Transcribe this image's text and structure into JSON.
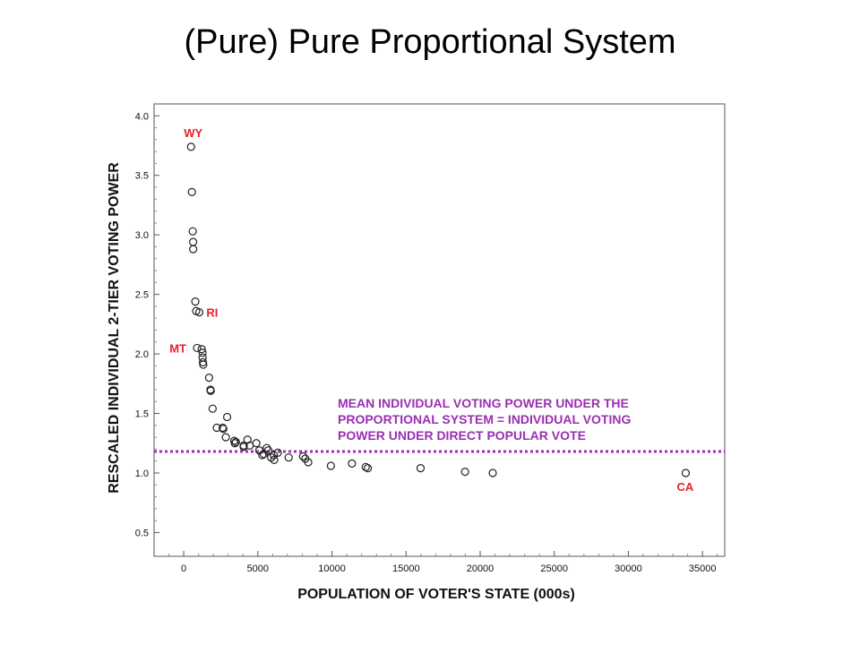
{
  "page": {
    "title": "(Pure) Pure Proportional System"
  },
  "colors": {
    "label_red": "#e8202a",
    "mean_purple": "#9a2fb0",
    "point": "#222222"
  },
  "chart_data": {
    "type": "scatter",
    "xlabel": "POPULATION OF VOTER'S STATE  (000s)",
    "ylabel": "RESCALED INDIVIDUAL 2-TIER VOTING POWER",
    "xlim": [
      -2000,
      36500
    ],
    "ylim": [
      0.3,
      4.1
    ],
    "xticks": [
      "0",
      "5000",
      "10000",
      "15000",
      "20000",
      "25000",
      "30000",
      "35000"
    ],
    "xtick_values": [
      0,
      5000,
      10000,
      15000,
      20000,
      25000,
      30000,
      35000
    ],
    "yticks": [
      "0.5",
      "1.0",
      "1.5",
      "2.0",
      "2.5",
      "3.0",
      "3.5",
      "4.0"
    ],
    "ytick_values": [
      0.5,
      1.0,
      1.5,
      2.0,
      2.5,
      3.0,
      3.5,
      4.0
    ],
    "grid": false,
    "points": [
      {
        "x": 494,
        "y": 3.74
      },
      {
        "x": 550,
        "y": 3.36
      },
      {
        "x": 608,
        "y": 3.03
      },
      {
        "x": 635,
        "y": 2.94
      },
      {
        "x": 640,
        "y": 2.88
      },
      {
        "x": 784,
        "y": 2.44
      },
      {
        "x": 840,
        "y": 2.36
      },
      {
        "x": 1048,
        "y": 2.35
      },
      {
        "x": 902,
        "y": 2.05
      },
      {
        "x": 1210,
        "y": 2.04
      },
      {
        "x": 1270,
        "y": 2.01
      },
      {
        "x": 1275,
        "y": 1.97
      },
      {
        "x": 1295,
        "y": 1.93
      },
      {
        "x": 1320,
        "y": 1.91
      },
      {
        "x": 1710,
        "y": 1.8
      },
      {
        "x": 1800,
        "y": 1.7
      },
      {
        "x": 1820,
        "y": 1.69
      },
      {
        "x": 1950,
        "y": 1.54
      },
      {
        "x": 2230,
        "y": 1.38
      },
      {
        "x": 2630,
        "y": 1.38
      },
      {
        "x": 2670,
        "y": 1.37
      },
      {
        "x": 2840,
        "y": 1.3
      },
      {
        "x": 2930,
        "y": 1.47
      },
      {
        "x": 3410,
        "y": 1.27
      },
      {
        "x": 3450,
        "y": 1.25
      },
      {
        "x": 3520,
        "y": 1.26
      },
      {
        "x": 4040,
        "y": 1.22
      },
      {
        "x": 4050,
        "y": 1.23
      },
      {
        "x": 4300,
        "y": 1.28
      },
      {
        "x": 4450,
        "y": 1.23
      },
      {
        "x": 4900,
        "y": 1.25
      },
      {
        "x": 5100,
        "y": 1.19
      },
      {
        "x": 5300,
        "y": 1.15
      },
      {
        "x": 5400,
        "y": 1.16
      },
      {
        "x": 5600,
        "y": 1.21
      },
      {
        "x": 5700,
        "y": 1.19
      },
      {
        "x": 5900,
        "y": 1.13
      },
      {
        "x": 6080,
        "y": 1.15
      },
      {
        "x": 6100,
        "y": 1.11
      },
      {
        "x": 6350,
        "y": 1.17
      },
      {
        "x": 7080,
        "y": 1.13
      },
      {
        "x": 8050,
        "y": 1.14
      },
      {
        "x": 8200,
        "y": 1.12
      },
      {
        "x": 8400,
        "y": 1.09
      },
      {
        "x": 9930,
        "y": 1.06
      },
      {
        "x": 11350,
        "y": 1.08
      },
      {
        "x": 12280,
        "y": 1.05
      },
      {
        "x": 12420,
        "y": 1.04
      },
      {
        "x": 15980,
        "y": 1.04
      },
      {
        "x": 18980,
        "y": 1.01
      },
      {
        "x": 20850,
        "y": 1.0
      },
      {
        "x": 33870,
        "y": 1.0
      }
    ],
    "mean_line": {
      "y": 1.18,
      "label_lines": [
        "MEAN INDIVIDUAL VOTING POWER UNDER THE",
        "PROPORTIONAL SYSTEM = INDIVIDUAL VOTING",
        "POWER UNDER DIRECT POPULAR VOTE"
      ]
    },
    "annotations": [
      {
        "text": "WY",
        "x": 494,
        "y": 3.74
      },
      {
        "text": "RI",
        "x": 1048,
        "y": 2.35
      },
      {
        "text": "MT",
        "x": 902,
        "y": 2.05
      },
      {
        "text": "CA",
        "x": 33870,
        "y": 1.0
      }
    ]
  }
}
